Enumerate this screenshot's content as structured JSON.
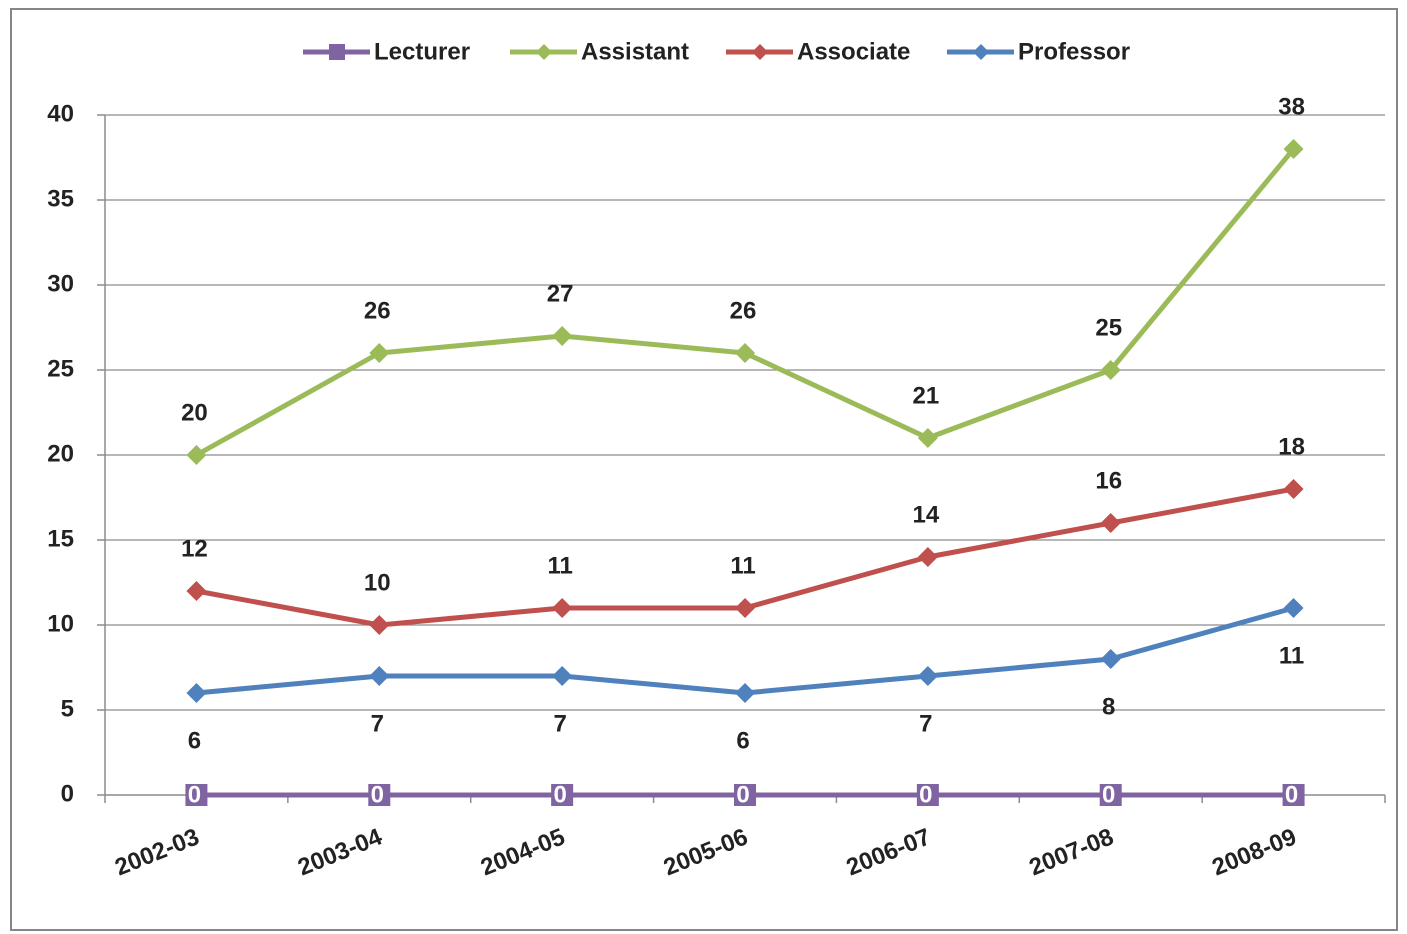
{
  "chart_data": {
    "type": "line",
    "categories": [
      "2002-03",
      "2003-04",
      "2004-05",
      "2005-06",
      "2006-07",
      "2007-08",
      "2008-09"
    ],
    "series": [
      {
        "name": "Lecturer",
        "color": "#8064a2",
        "marker": "square",
        "values": [
          0,
          0,
          0,
          0,
          0,
          0,
          0
        ]
      },
      {
        "name": "Assistant",
        "color": "#9bbb59",
        "marker": "diamond",
        "values": [
          20,
          26,
          27,
          26,
          21,
          25,
          38
        ]
      },
      {
        "name": "Associate",
        "color": "#c0504d",
        "marker": "diamond",
        "values": [
          12,
          10,
          11,
          11,
          14,
          16,
          18
        ]
      },
      {
        "name": "Professor",
        "color": "#4f81bd",
        "marker": "diamond",
        "values": [
          6,
          7,
          7,
          6,
          7,
          8,
          11
        ]
      }
    ],
    "ylim": [
      0,
      40
    ],
    "yticks": [
      0,
      5,
      10,
      15,
      20,
      25,
      30,
      35,
      40
    ],
    "grid": true,
    "legend": "top"
  }
}
